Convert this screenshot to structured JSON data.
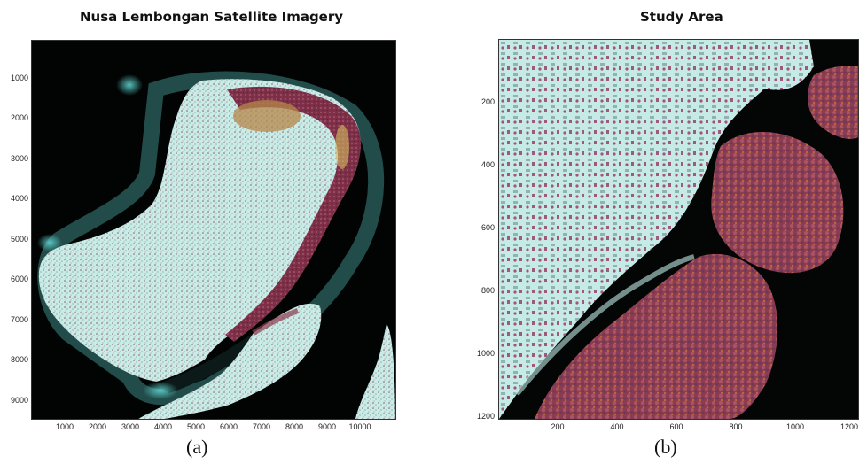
{
  "figure": {
    "panel_a": {
      "title": "Nusa Lembongan Satellite Imagery",
      "caption": "(a)",
      "y_ticks": [
        "1000",
        "2000",
        "3000",
        "4000",
        "5000",
        "6000",
        "7000",
        "8000",
        "9000"
      ],
      "x_ticks": [
        "1000",
        "2000",
        "3000",
        "4000",
        "5000",
        "6000",
        "7000",
        "8000",
        "9000",
        "10000"
      ],
      "y_range": [
        0,
        9400
      ],
      "x_range": [
        0,
        11000
      ],
      "image_description": "false-color satellite view of island with dark sea background"
    },
    "panel_b": {
      "title": "Study Area",
      "caption": "(b)",
      "y_ticks": [
        "200",
        "400",
        "600",
        "800",
        "1000",
        "1200"
      ],
      "x_ticks": [
        "200",
        "400",
        "600",
        "800",
        "1000",
        "1200"
      ],
      "y_range": [
        0,
        1200
      ],
      "x_range": [
        0,
        1210
      ]
    },
    "colors": {
      "land_cyan": "#bfe9e4",
      "vegetation_red": "#8e3a4e",
      "sea_dark": "#030605",
      "coast_glow": "#5fd3cf"
    }
  }
}
